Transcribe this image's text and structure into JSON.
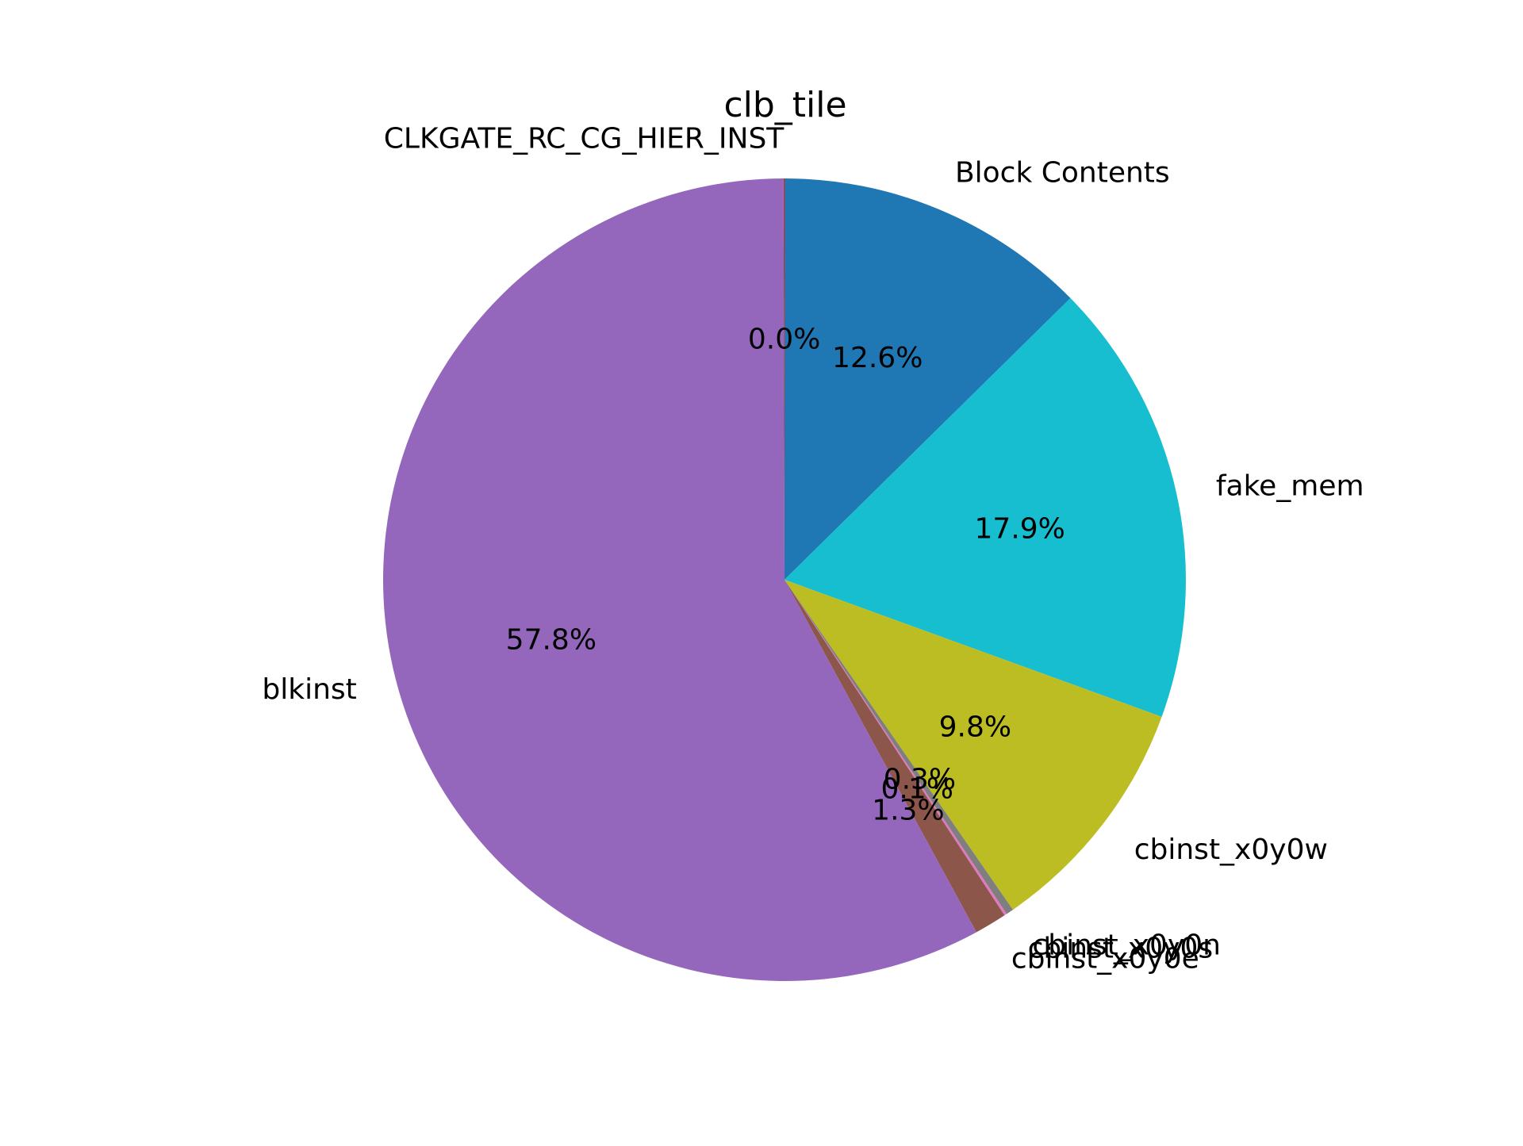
{
  "chart_data": {
    "type": "pie",
    "title": "clb_tile",
    "slices": [
      {
        "label": "Block Contents",
        "value": 12.6,
        "pct_text": "12.6%",
        "color": "#1f77b4"
      },
      {
        "label": "fake_mem",
        "value": 17.9,
        "pct_text": "17.9%",
        "color": "#17becf"
      },
      {
        "label": "cbinst_x0y0w",
        "value": 9.8,
        "pct_text": "9.8%",
        "color": "#bcbd22"
      },
      {
        "label": "cbinst_x0y0n",
        "value": 0.3,
        "pct_text": "0.3%",
        "color": "#7f7f7f"
      },
      {
        "label": "cbinst_x0y0s",
        "value": 0.1,
        "pct_text": "0.1%",
        "color": "#e377c2"
      },
      {
        "label": "cbinst_x0y0e",
        "value": 1.3,
        "pct_text": "1.3%",
        "color": "#8c564b"
      },
      {
        "label": "blkinst",
        "value": 57.8,
        "pct_text": "57.8%",
        "color": "#9467bd"
      },
      {
        "label": "CLKGATE_RC_CG_HIER_INST",
        "value": 0.04,
        "pct_text": "0.0%",
        "color": "#d62728"
      }
    ],
    "start_angle": 90,
    "direction": "clockwise"
  }
}
